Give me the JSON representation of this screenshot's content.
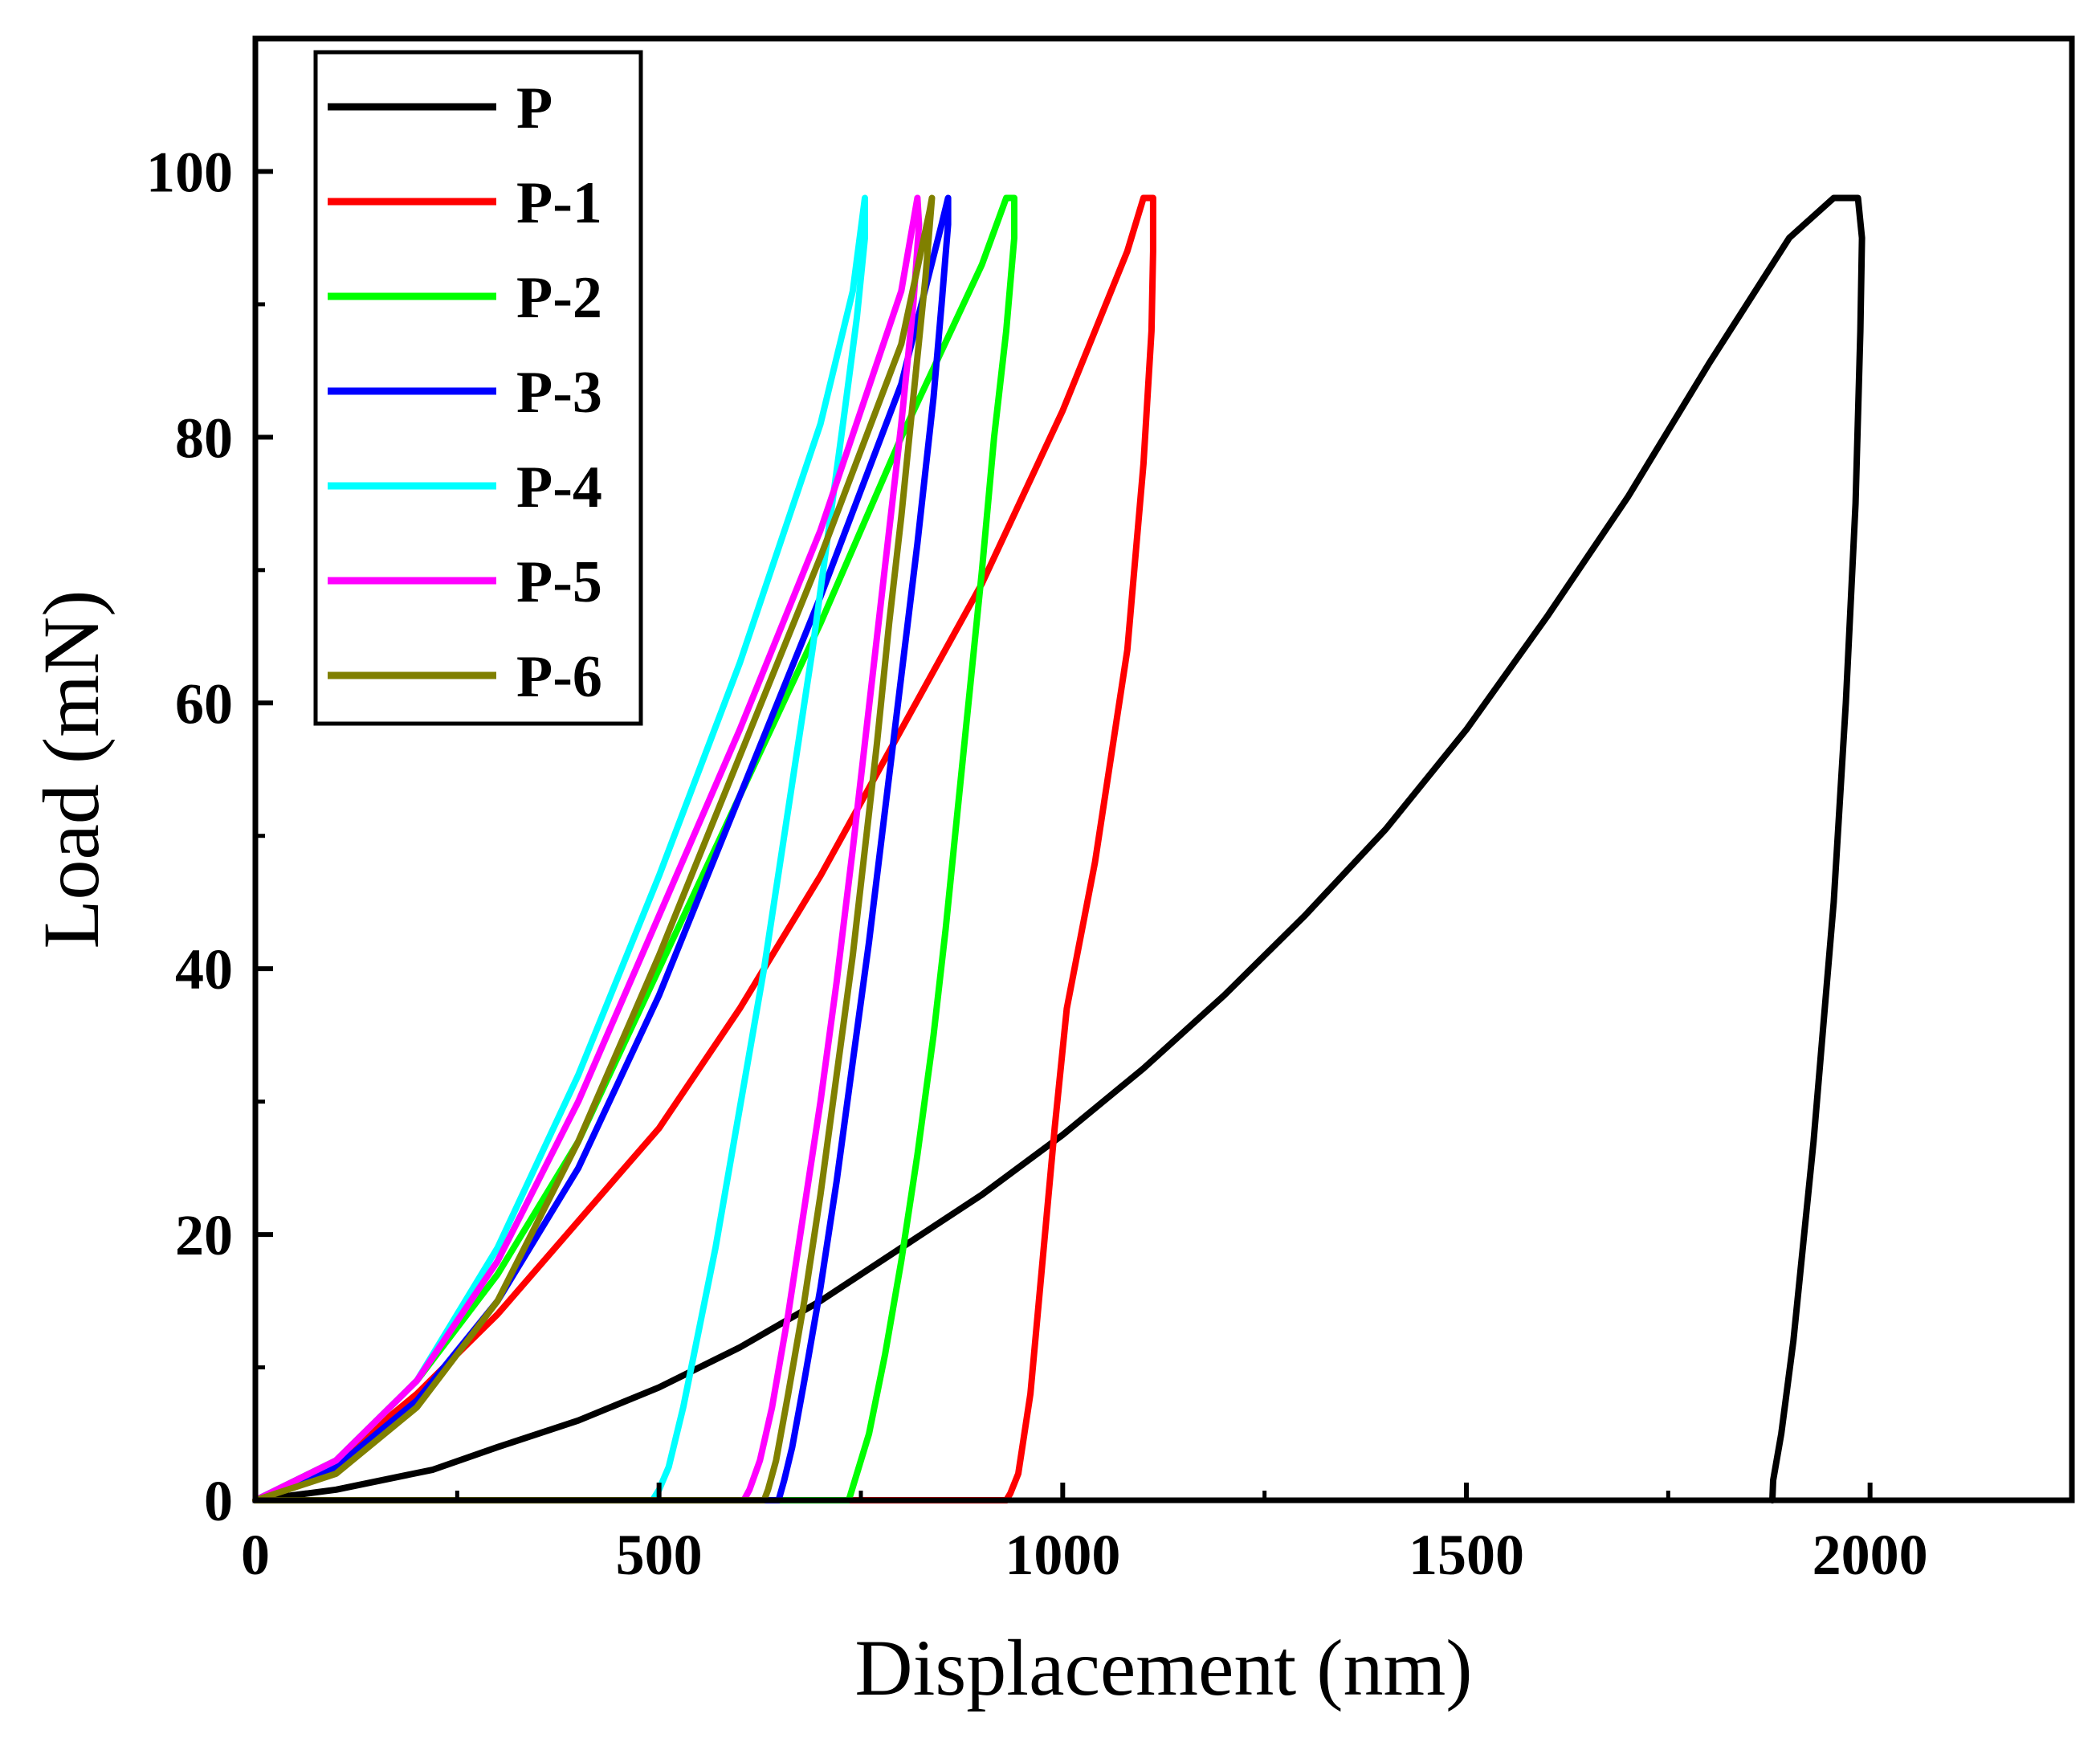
{
  "chart_data": {
    "type": "line",
    "title": "",
    "xlabel": "Displacement (nm)",
    "ylabel": "Load (mN)",
    "xlim": [
      0,
      2250
    ],
    "ylim": [
      0,
      110
    ],
    "xticks": [
      0,
      500,
      1000,
      1500,
      2000
    ],
    "yticks": [
      0,
      20,
      40,
      60,
      80,
      100
    ],
    "x_minor_ticks": [
      250,
      750,
      1250,
      1750
    ],
    "y_minor_ticks": [
      10,
      30,
      50,
      70,
      90
    ],
    "grid": false,
    "legend_position": "top-left",
    "series": [
      {
        "name": "P",
        "color": "#000000",
        "x": [
          0,
          100,
          220,
          300,
          400,
          500,
          600,
          700,
          800,
          900,
          1000,
          1100,
          1200,
          1300,
          1400,
          1500,
          1600,
          1700,
          1800,
          1900,
          1955,
          1985,
          1990,
          1988,
          1982,
          1970,
          1955,
          1930,
          1905,
          1890,
          1880,
          1879
        ],
        "y": [
          0,
          0.8,
          2.3,
          4,
          6,
          8.5,
          11.5,
          15,
          19,
          23,
          27.5,
          32.5,
          38,
          44,
          50.5,
          58,
          66.5,
          75.5,
          85.5,
          95,
          98,
          98,
          95,
          88,
          75,
          60,
          45,
          27,
          12,
          5,
          1.5,
          0
        ]
      },
      {
        "name": "P-1",
        "color": "#ff0000",
        "x": [
          0,
          100,
          200,
          300,
          400,
          500,
          600,
          700,
          800,
          900,
          1000,
          1080,
          1100,
          1112,
          1112,
          1110,
          1100,
          1080,
          1040,
          1005,
          990,
          975,
          960,
          945,
          935,
          930,
          700,
          0
        ],
        "y": [
          0,
          3,
          8,
          14,
          21,
          28,
          37,
          47,
          58,
          69,
          82,
          94,
          98,
          98,
          94,
          88,
          78,
          64,
          48,
          37,
          28,
          18,
          8,
          2,
          0.5,
          0,
          0,
          0
        ]
      },
      {
        "name": "P-2",
        "color": "#00ff00",
        "x": [
          0,
          100,
          200,
          300,
          400,
          500,
          600,
          700,
          800,
          900,
          930,
          940,
          940,
          930,
          915,
          900,
          885,
          870,
          855,
          840,
          820,
          800,
          780,
          760,
          745,
          735,
          0
        ],
        "y": [
          0,
          3,
          9,
          17,
          27,
          40,
          53,
          66,
          80,
          93,
          98,
          98,
          95,
          88,
          80,
          70,
          61,
          52,
          43,
          35,
          26,
          18,
          11,
          5,
          2,
          0,
          0
        ]
      },
      {
        "name": "P-3",
        "color": "#0000ff",
        "x": [
          0,
          100,
          200,
          300,
          400,
          500,
          600,
          700,
          800,
          850,
          858,
          858,
          850,
          840,
          820,
          800,
          780,
          760,
          740,
          720,
          700,
          680,
          665,
          655,
          648,
          0
        ],
        "y": [
          0,
          2.5,
          7.5,
          15,
          25,
          38,
          53,
          68,
          84,
          96,
          98,
          96,
          90,
          83,
          72,
          62,
          52,
          42,
          33,
          24,
          16,
          9,
          4,
          1.5,
          0,
          0
        ]
      },
      {
        "name": "P-4",
        "color": "#00ffff",
        "x": [
          0,
          100,
          200,
          300,
          400,
          500,
          600,
          700,
          740,
          755,
          755,
          745,
          730,
          710,
          690,
          670,
          650,
          630,
          610,
          590,
          570,
          550,
          530,
          512,
          500,
          492,
          0
        ],
        "y": [
          0,
          3,
          9,
          19,
          32,
          47,
          63,
          81,
          91,
          98,
          95,
          89,
          82,
          73,
          64,
          56,
          48,
          40,
          33,
          26,
          19,
          13,
          7,
          2.5,
          0.8,
          0,
          0
        ]
      },
      {
        "name": "P-5",
        "color": "#ff00ff",
        "x": [
          0,
          100,
          200,
          300,
          400,
          500,
          600,
          700,
          800,
          820,
          822,
          815,
          800,
          785,
          770,
          755,
          740,
          720,
          700,
          680,
          660,
          640,
          625,
          612,
          605,
          0
        ],
        "y": [
          0,
          3,
          9,
          18,
          30,
          44,
          58,
          73,
          91,
          98,
          96,
          90,
          81,
          73,
          65,
          57,
          49,
          39,
          30,
          22,
          14,
          7,
          3,
          0.8,
          0,
          0
        ]
      },
      {
        "name": "P-6",
        "color": "#808000",
        "x": [
          0,
          100,
          200,
          300,
          400,
          500,
          600,
          700,
          800,
          835,
          838,
          830,
          815,
          800,
          785,
          770,
          755,
          740,
          720,
          700,
          680,
          660,
          645,
          635,
          630,
          0
        ],
        "y": [
          0,
          2,
          7,
          15,
          27,
          41,
          56,
          71,
          87,
          97,
          98,
          92,
          83,
          74,
          66,
          57,
          49,
          41,
          32,
          23,
          15,
          8,
          3,
          0.8,
          0,
          0
        ]
      }
    ]
  }
}
